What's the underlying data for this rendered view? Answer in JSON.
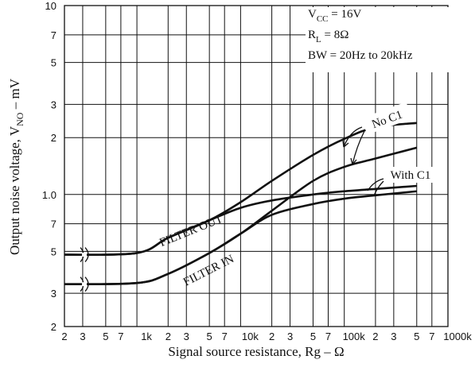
{
  "chart_data": {
    "type": "line",
    "x": [
      200,
      1000,
      2000,
      5000,
      10000,
      20000,
      50000,
      100000,
      200000,
      500000
    ],
    "series": [
      {
        "color": "#111111",
        "values": [
          0.48,
          0.49,
          0.59,
          0.73,
          0.91,
          1.18,
          1.62,
          1.97,
          2.27,
          2.39
        ]
      },
      {
        "color": "#111111",
        "values": [
          0.335,
          0.34,
          0.38,
          0.49,
          0.62,
          0.82,
          1.18,
          1.4,
          1.55,
          1.77
        ]
      },
      {
        "color": "#111111",
        "values": [
          0.48,
          0.49,
          0.59,
          0.73,
          0.85,
          0.93,
          1.0,
          1.04,
          1.07,
          1.11
        ]
      },
      {
        "color": "#111111",
        "values": [
          0.335,
          0.34,
          0.38,
          0.49,
          0.62,
          0.78,
          0.89,
          0.95,
          0.99,
          1.04
        ]
      }
    ],
    "log_x": true,
    "log_y": true,
    "grid": true,
    "xlim": [
      200,
      1000000
    ],
    "ylim": [
      0.2,
      10
    ],
    "xticks": [
      {
        "value": 200,
        "label": "2"
      },
      {
        "value": 300,
        "label": "3"
      },
      {
        "value": 500,
        "label": "5"
      },
      {
        "value": 700,
        "label": "7"
      },
      {
        "value": 1000,
        "label": "1k"
      },
      {
        "value": 2000,
        "label": "2"
      },
      {
        "value": 3000,
        "label": "3"
      },
      {
        "value": 5000,
        "label": "5"
      },
      {
        "value": 7000,
        "label": "7"
      },
      {
        "value": 10000,
        "label": "10k"
      },
      {
        "value": 20000,
        "label": "2"
      },
      {
        "value": 30000,
        "label": "3"
      },
      {
        "value": 50000,
        "label": "5"
      },
      {
        "value": 70000,
        "label": "7"
      },
      {
        "value": 100000,
        "label": "100k"
      },
      {
        "value": 200000,
        "label": "2"
      },
      {
        "value": 300000,
        "label": "3"
      },
      {
        "value": 500000,
        "label": "5"
      },
      {
        "value": 700000,
        "label": "7"
      },
      {
        "value": 1000000,
        "label": "1000k"
      }
    ],
    "yticks": [
      10,
      {
        "value": 7,
        "label": "7"
      },
      {
        "value": 5,
        "label": "5"
      },
      {
        "value": 3,
        "label": "3"
      },
      {
        "value": 2,
        "label": "2"
      },
      {
        "value": 1,
        "label": "1.0"
      },
      {
        "value": 0.7,
        "label": "7"
      },
      {
        "value": 0.5,
        "label": "5"
      },
      {
        "value": 0.3,
        "label": "3"
      },
      {
        "value": 0.2,
        "label": "2"
      }
    ],
    "xlabel": "Signal source resistance, Rg – Ω",
    "ylabel": {
      "main": "Output noise voltage, V",
      "sub": "NO",
      "rest": " – mV"
    },
    "conditions": [
      {
        "main": "V",
        "sub": "CC",
        "rest": " = 16V"
      },
      {
        "main": "R",
        "sub": "L",
        "rest": " = 8Ω"
      },
      {
        "main": "BW = 20Hz to 20kHz"
      }
    ],
    "annotations": {
      "no_c1": "No C1",
      "with_c1": "With C1",
      "filter_out": "FILTER OUT",
      "filter_in": "FILTER IN"
    }
  }
}
